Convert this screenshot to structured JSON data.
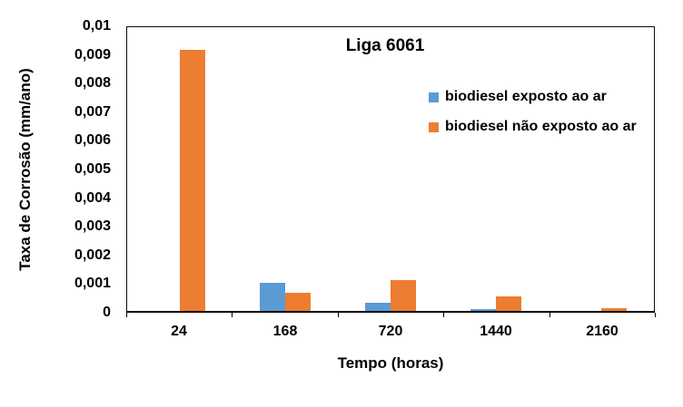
{
  "colors": {
    "series_blue": "#5B9BD5",
    "series_orange": "#ED7D31",
    "axis": "#000000",
    "background": "#FFFFFF"
  },
  "chart_data": {
    "type": "bar",
    "title": "Liga 6061",
    "xlabel": "Tempo (horas)",
    "ylabel": "Taxa de Corrosão (mm/ano)",
    "categories": [
      "24",
      "168",
      "720",
      "1440",
      "2160"
    ],
    "series": [
      {
        "name": "biodiesel exposto ao ar",
        "color": "#5B9BD5",
        "values": [
          0,
          0.001,
          0.0003,
          6e-05,
          0
        ]
      },
      {
        "name": "biodiesel não exposto ao ar",
        "color": "#ED7D31",
        "values": [
          0.0092,
          0.00065,
          0.0011,
          0.0005,
          0.0001
        ]
      }
    ],
    "ylim": [
      0,
      0.01
    ],
    "ytick_step": 0.001,
    "ytick_labels": [
      "0",
      "0,001",
      "0,002",
      "0,003",
      "0,004",
      "0,005",
      "0,006",
      "0,007",
      "0,008",
      "0,009",
      "0,01"
    ],
    "grid": false,
    "legend_position": "inside-top-right"
  }
}
